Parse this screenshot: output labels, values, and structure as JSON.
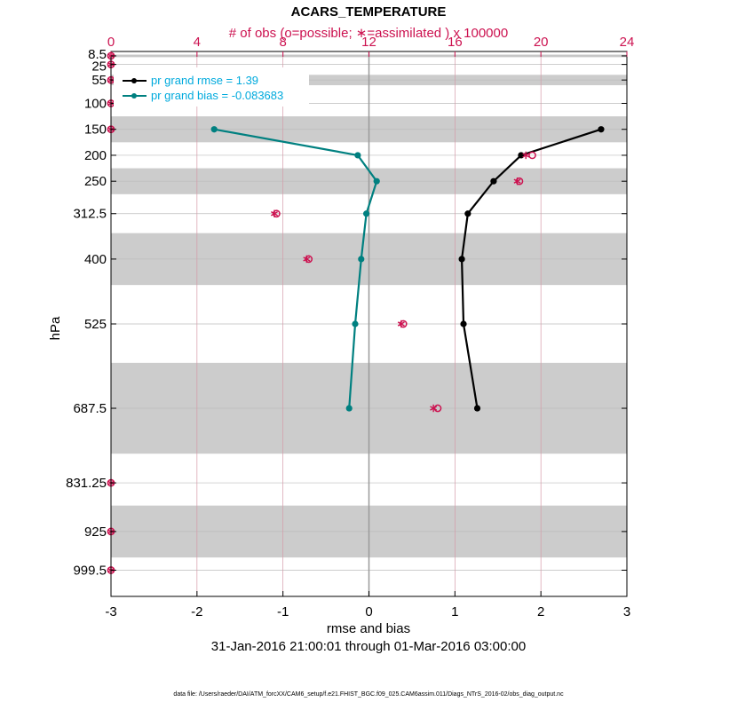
{
  "chart_data": {
    "type": "line",
    "title": "ACARS_TEMPERATURE",
    "top_axis_label": "# of obs (o=possible; ∗=assimilated ) x 100000",
    "xlabel": "rmse and bias",
    "ylabel": "hPa",
    "date_range": "31-Jan-2016 21:00:01 through 01-Mar-2016 03:00:00",
    "footer": "data file: /Users/raeder/DAI/ATM_forcXX/CAM6_setup/f.e21.FHIST_BGC.f09_025.CAM6assim.011/Diags_NTrS_2016-02/obs_diag_output.nc",
    "xlim": [
      -3,
      3
    ],
    "xticks": [
      "-3",
      "-2",
      "-1",
      "0",
      "1",
      "2",
      "3"
    ],
    "top_xlim": [
      0,
      24
    ],
    "top_xticks": [
      "0",
      "4",
      "8",
      "12",
      "16",
      "20",
      "24"
    ],
    "y_scale": "pressure levels (inverted)",
    "ylim": [
      1050,
      0
    ],
    "levels": [
      8.5,
      25,
      55,
      100,
      150,
      200,
      250,
      312.5,
      400,
      525,
      687.5,
      831.25,
      925,
      999.5
    ],
    "level_labels": [
      "8.5",
      "25",
      "55",
      "100",
      "150",
      "200",
      "250",
      "312.5",
      "400",
      "525",
      "687.5",
      "831.25",
      "925",
      "999.5"
    ],
    "shaded_bands_hPa": [
      [
        6,
        11
      ],
      [
        45,
        65
      ],
      [
        125,
        175
      ],
      [
        225,
        275
      ],
      [
        350,
        450
      ],
      [
        600,
        775
      ],
      [
        875,
        975
      ]
    ],
    "series": [
      {
        "name": "pr grand rmse = 1.39",
        "color": "#000000",
        "points": [
          [
            2.7,
            150
          ],
          [
            1.77,
            200
          ],
          [
            1.45,
            250
          ],
          [
            1.15,
            312.5
          ],
          [
            1.08,
            400
          ],
          [
            1.1,
            525
          ],
          [
            1.26,
            687.5
          ]
        ]
      },
      {
        "name": "pr grand bias = -0.083683",
        "color": "#008080",
        "points": [
          [
            -1.8,
            150
          ],
          [
            -0.13,
            200
          ],
          [
            0.09,
            250
          ],
          [
            -0.03,
            312.5
          ],
          [
            -0.09,
            400
          ],
          [
            -0.16,
            525
          ],
          [
            -0.23,
            687.5
          ]
        ]
      }
    ],
    "obs_counts": {
      "color": "#cc1250",
      "possible": [
        [
          0,
          8.5
        ],
        [
          0,
          25
        ],
        [
          0,
          55
        ],
        [
          0,
          100
        ],
        [
          0,
          150
        ],
        [
          19.6,
          200
        ],
        [
          19.0,
          250
        ],
        [
          7.7,
          312.5
        ],
        [
          9.2,
          400
        ],
        [
          13.6,
          525
        ],
        [
          15.2,
          687.5
        ],
        [
          0,
          831.25
        ],
        [
          0,
          925
        ],
        [
          0,
          999.5
        ]
      ],
      "assimilated": [
        [
          0,
          8.5
        ],
        [
          0,
          25
        ],
        [
          0,
          55
        ],
        [
          0,
          100
        ],
        [
          0,
          150
        ],
        [
          19.3,
          200
        ],
        [
          18.9,
          250
        ],
        [
          7.6,
          312.5
        ],
        [
          9.1,
          400
        ],
        [
          13.5,
          525
        ],
        [
          15.0,
          687.5
        ],
        [
          0,
          831.25
        ],
        [
          0,
          925
        ],
        [
          0,
          999.5
        ]
      ]
    },
    "grid": true,
    "legend_position": "top-left"
  }
}
